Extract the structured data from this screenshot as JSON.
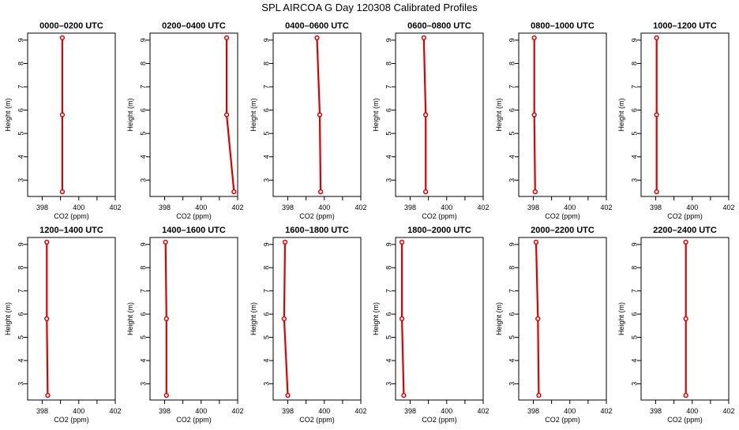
{
  "figure": {
    "title": "SPL AIRCOA G  Day 120308  Calibrated Profiles"
  },
  "colors": {
    "profile_line": "#dd0000",
    "marker": "#dd0000",
    "axes": "#000000"
  },
  "chart_data": [
    {
      "type": "line",
      "title": "0000–0200 UTC",
      "xlabel": "CO2 (ppm)",
      "ylabel": "Height (m)",
      "xlim": [
        397.2,
        402
      ],
      "ylim": [
        2.3,
        9.3
      ],
      "xticks": [
        398,
        400,
        402
      ],
      "yticks": [
        3,
        4,
        5,
        6,
        7,
        8,
        9
      ],
      "grid": false,
      "series": [
        {
          "x": [
            399.1,
            399.1,
            399.1
          ],
          "y": [
            2.5,
            5.8,
            9.1
          ]
        }
      ]
    },
    {
      "type": "line",
      "title": "0200–0400 UTC",
      "xlabel": "CO2 (ppm)",
      "ylabel": "Height (m)",
      "xlim": [
        397.2,
        402
      ],
      "ylim": [
        2.3,
        9.3
      ],
      "xticks": [
        398,
        400,
        402
      ],
      "yticks": [
        3,
        4,
        5,
        6,
        7,
        8,
        9
      ],
      "grid": false,
      "series": [
        {
          "x": [
            401.8,
            401.4,
            401.4
          ],
          "y": [
            2.5,
            5.8,
            9.1
          ]
        }
      ]
    },
    {
      "type": "line",
      "title": "0400–0600 UTC",
      "xlabel": "CO2 (ppm)",
      "ylabel": "Height (m)",
      "xlim": [
        397.2,
        402
      ],
      "ylim": [
        2.3,
        9.3
      ],
      "xticks": [
        398,
        400,
        402
      ],
      "yticks": [
        3,
        4,
        5,
        6,
        7,
        8,
        9
      ],
      "grid": false,
      "series": [
        {
          "x": [
            399.8,
            399.75,
            399.6
          ],
          "y": [
            2.5,
            5.8,
            9.1
          ]
        }
      ]
    },
    {
      "type": "line",
      "title": "0600–0800 UTC",
      "xlabel": "CO2 (ppm)",
      "ylabel": "Height (m)",
      "xlim": [
        397.2,
        402
      ],
      "ylim": [
        2.3,
        9.3
      ],
      "xticks": [
        398,
        400,
        402
      ],
      "yticks": [
        3,
        4,
        5,
        6,
        7,
        8,
        9
      ],
      "grid": false,
      "series": [
        {
          "x": [
            398.85,
            398.85,
            398.75
          ],
          "y": [
            2.5,
            5.8,
            9.1
          ]
        }
      ]
    },
    {
      "type": "line",
      "title": "0800–1000 UTC",
      "xlabel": "CO2 (ppm)",
      "ylabel": "Height (m)",
      "xlim": [
        397.2,
        402
      ],
      "ylim": [
        2.3,
        9.3
      ],
      "xticks": [
        398,
        400,
        402
      ],
      "yticks": [
        3,
        4,
        5,
        6,
        7,
        8,
        9
      ],
      "grid": false,
      "series": [
        {
          "x": [
            398.1,
            398.05,
            398.05
          ],
          "y": [
            2.5,
            5.8,
            9.1
          ]
        }
      ]
    },
    {
      "type": "line",
      "title": "1000–1200 UTC",
      "xlabel": "CO2 (ppm)",
      "ylabel": "Height (m)",
      "xlim": [
        397.2,
        402
      ],
      "ylim": [
        2.3,
        9.3
      ],
      "xticks": [
        398,
        400,
        402
      ],
      "yticks": [
        3,
        4,
        5,
        6,
        7,
        8,
        9
      ],
      "grid": false,
      "series": [
        {
          "x": [
            398.05,
            398.05,
            398.05
          ],
          "y": [
            2.5,
            5.8,
            9.1
          ]
        }
      ]
    },
    {
      "type": "line",
      "title": "1200–1400 UTC",
      "xlabel": "CO2 (ppm)",
      "ylabel": "Height (m)",
      "xlim": [
        397.2,
        402
      ],
      "ylim": [
        2.3,
        9.3
      ],
      "xticks": [
        398,
        400,
        402
      ],
      "yticks": [
        3,
        4,
        5,
        6,
        7,
        8,
        9
      ],
      "grid": false,
      "series": [
        {
          "x": [
            398.3,
            398.25,
            398.25
          ],
          "y": [
            2.5,
            5.8,
            9.1
          ]
        }
      ]
    },
    {
      "type": "line",
      "title": "1400–1600 UTC",
      "xlabel": "CO2 (ppm)",
      "ylabel": "Height (m)",
      "xlim": [
        397.2,
        402
      ],
      "ylim": [
        2.3,
        9.3
      ],
      "xticks": [
        398,
        400,
        402
      ],
      "yticks": [
        3,
        4,
        5,
        6,
        7,
        8,
        9
      ],
      "grid": false,
      "series": [
        {
          "x": [
            398.1,
            398.1,
            398.05
          ],
          "y": [
            2.5,
            5.8,
            9.1
          ]
        }
      ]
    },
    {
      "type": "line",
      "title": "1600–1800 UTC",
      "xlabel": "CO2 (ppm)",
      "ylabel": "Height (m)",
      "xlim": [
        397.2,
        402
      ],
      "ylim": [
        2.3,
        9.3
      ],
      "xticks": [
        398,
        400,
        402
      ],
      "yticks": [
        3,
        4,
        5,
        6,
        7,
        8,
        9
      ],
      "grid": false,
      "series": [
        {
          "x": [
            398.0,
            397.8,
            397.85
          ],
          "y": [
            2.5,
            5.8,
            9.1
          ]
        }
      ]
    },
    {
      "type": "line",
      "title": "1800–2000 UTC",
      "xlabel": "CO2 (ppm)",
      "ylabel": "Height (m)",
      "xlim": [
        397.2,
        402
      ],
      "ylim": [
        2.3,
        9.3
      ],
      "xticks": [
        398,
        400,
        402
      ],
      "yticks": [
        3,
        4,
        5,
        6,
        7,
        8,
        9
      ],
      "grid": false,
      "series": [
        {
          "x": [
            397.65,
            397.55,
            397.55
          ],
          "y": [
            2.5,
            5.8,
            9.1
          ]
        }
      ]
    },
    {
      "type": "line",
      "title": "2000–2200 UTC",
      "xlabel": "CO2 (ppm)",
      "ylabel": "Height (m)",
      "xlim": [
        397.2,
        402
      ],
      "ylim": [
        2.3,
        9.3
      ],
      "xticks": [
        398,
        400,
        402
      ],
      "yticks": [
        3,
        4,
        5,
        6,
        7,
        8,
        9
      ],
      "grid": false,
      "series": [
        {
          "x": [
            398.3,
            398.25,
            398.15
          ],
          "y": [
            2.5,
            5.8,
            9.1
          ]
        }
      ]
    },
    {
      "type": "line",
      "title": "2200–2400 UTC",
      "xlabel": "CO2 (ppm)",
      "ylabel": "Height (m)",
      "xlim": [
        397.2,
        402
      ],
      "ylim": [
        2.3,
        9.3
      ],
      "xticks": [
        398,
        400,
        402
      ],
      "yticks": [
        3,
        4,
        5,
        6,
        7,
        8,
        9
      ],
      "grid": false,
      "series": [
        {
          "x": [
            399.65,
            399.65,
            399.65
          ],
          "y": [
            2.5,
            5.8,
            9.1
          ]
        }
      ]
    }
  ]
}
